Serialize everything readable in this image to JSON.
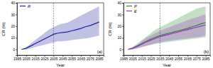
{
  "chart_data": [
    {
      "type": "line",
      "x_label": "Year",
      "y_label": "CR (%)",
      "annotation": "(a)",
      "x": [
        2000,
        2005,
        2010,
        2015,
        2020,
        2025,
        2030,
        2035,
        2040,
        2045,
        2050,
        2055,
        2060,
        2065,
        2070,
        2075,
        2080,
        2085
      ],
      "xlim": [
        1995,
        2090
      ],
      "xticks": [
        1995,
        2005,
        2015,
        2025,
        2035,
        2045,
        2055,
        2065,
        2075,
        2085
      ],
      "ylim": [
        -5,
        40
      ],
      "yticks": [
        0,
        10,
        20,
        30,
        40
      ],
      "reference_x": 2035,
      "legend": "upper left",
      "series": [
        {
          "name": "R",
          "color": "#1f1f9e",
          "values": [
            0,
            1,
            3,
            5,
            7,
            9,
            11,
            13,
            14,
            14.5,
            15,
            16,
            17,
            18,
            19.5,
            20.5,
            22,
            23.5
          ],
          "lower": [
            0,
            0,
            1,
            2,
            3,
            4,
            5,
            6,
            7,
            7,
            7.5,
            8,
            8.5,
            9,
            9.5,
            10,
            11,
            12
          ],
          "upper": [
            0,
            2,
            5,
            8,
            11,
            14,
            17,
            19,
            21,
            22,
            23,
            25,
            27,
            29,
            31,
            33,
            35,
            37
          ]
        }
      ]
    },
    {
      "type": "line",
      "x_label": "Year",
      "y_label": "CR (%)",
      "annotation": "(b)",
      "x": [
        2000,
        2005,
        2010,
        2015,
        2020,
        2025,
        2030,
        2035,
        2040,
        2045,
        2050,
        2055,
        2060,
        2065,
        2070,
        2075,
        2080,
        2085
      ],
      "xlim": [
        1995,
        2090
      ],
      "xticks": [
        1995,
        2005,
        2015,
        2025,
        2035,
        2045,
        2055,
        2065,
        2075,
        2085
      ],
      "ylim": [
        -5,
        40
      ],
      "yticks": [
        0,
        10,
        20,
        30,
        40
      ],
      "reference_x": 2035,
      "legend": "upper left",
      "series": [
        {
          "name": "P",
          "color": "#2e8b2e",
          "values": [
            0,
            1,
            3,
            5,
            7,
            9,
            10.5,
            12,
            13,
            14,
            15,
            16,
            17,
            18,
            19.5,
            20.5,
            22,
            23
          ],
          "lower": [
            0,
            0,
            1,
            2,
            3,
            4,
            5,
            5.5,
            6,
            6.5,
            7,
            7.5,
            8,
            8.5,
            9,
            9.5,
            10,
            10.5
          ],
          "upper": [
            0,
            2,
            5,
            8,
            11,
            14,
            17,
            19,
            21,
            23,
            25,
            27,
            29,
            31,
            33,
            35,
            36,
            37
          ]
        },
        {
          "name": "E",
          "color": "#9b30c8",
          "values": [
            0,
            1,
            2.5,
            4.5,
            6.5,
            8,
            9.5,
            11,
            12,
            13,
            14,
            15,
            16,
            17,
            18,
            19,
            20,
            21
          ],
          "lower": [
            0,
            0,
            1,
            2,
            3,
            4,
            5,
            6,
            7,
            7.5,
            8,
            8.5,
            9,
            9.5,
            10,
            10.5,
            11,
            12
          ],
          "upper": [
            0,
            2,
            4,
            7,
            10,
            12,
            14,
            16,
            17.5,
            19,
            20.5,
            22,
            23.5,
            25,
            26.5,
            27.5,
            29,
            30
          ]
        }
      ]
    }
  ]
}
